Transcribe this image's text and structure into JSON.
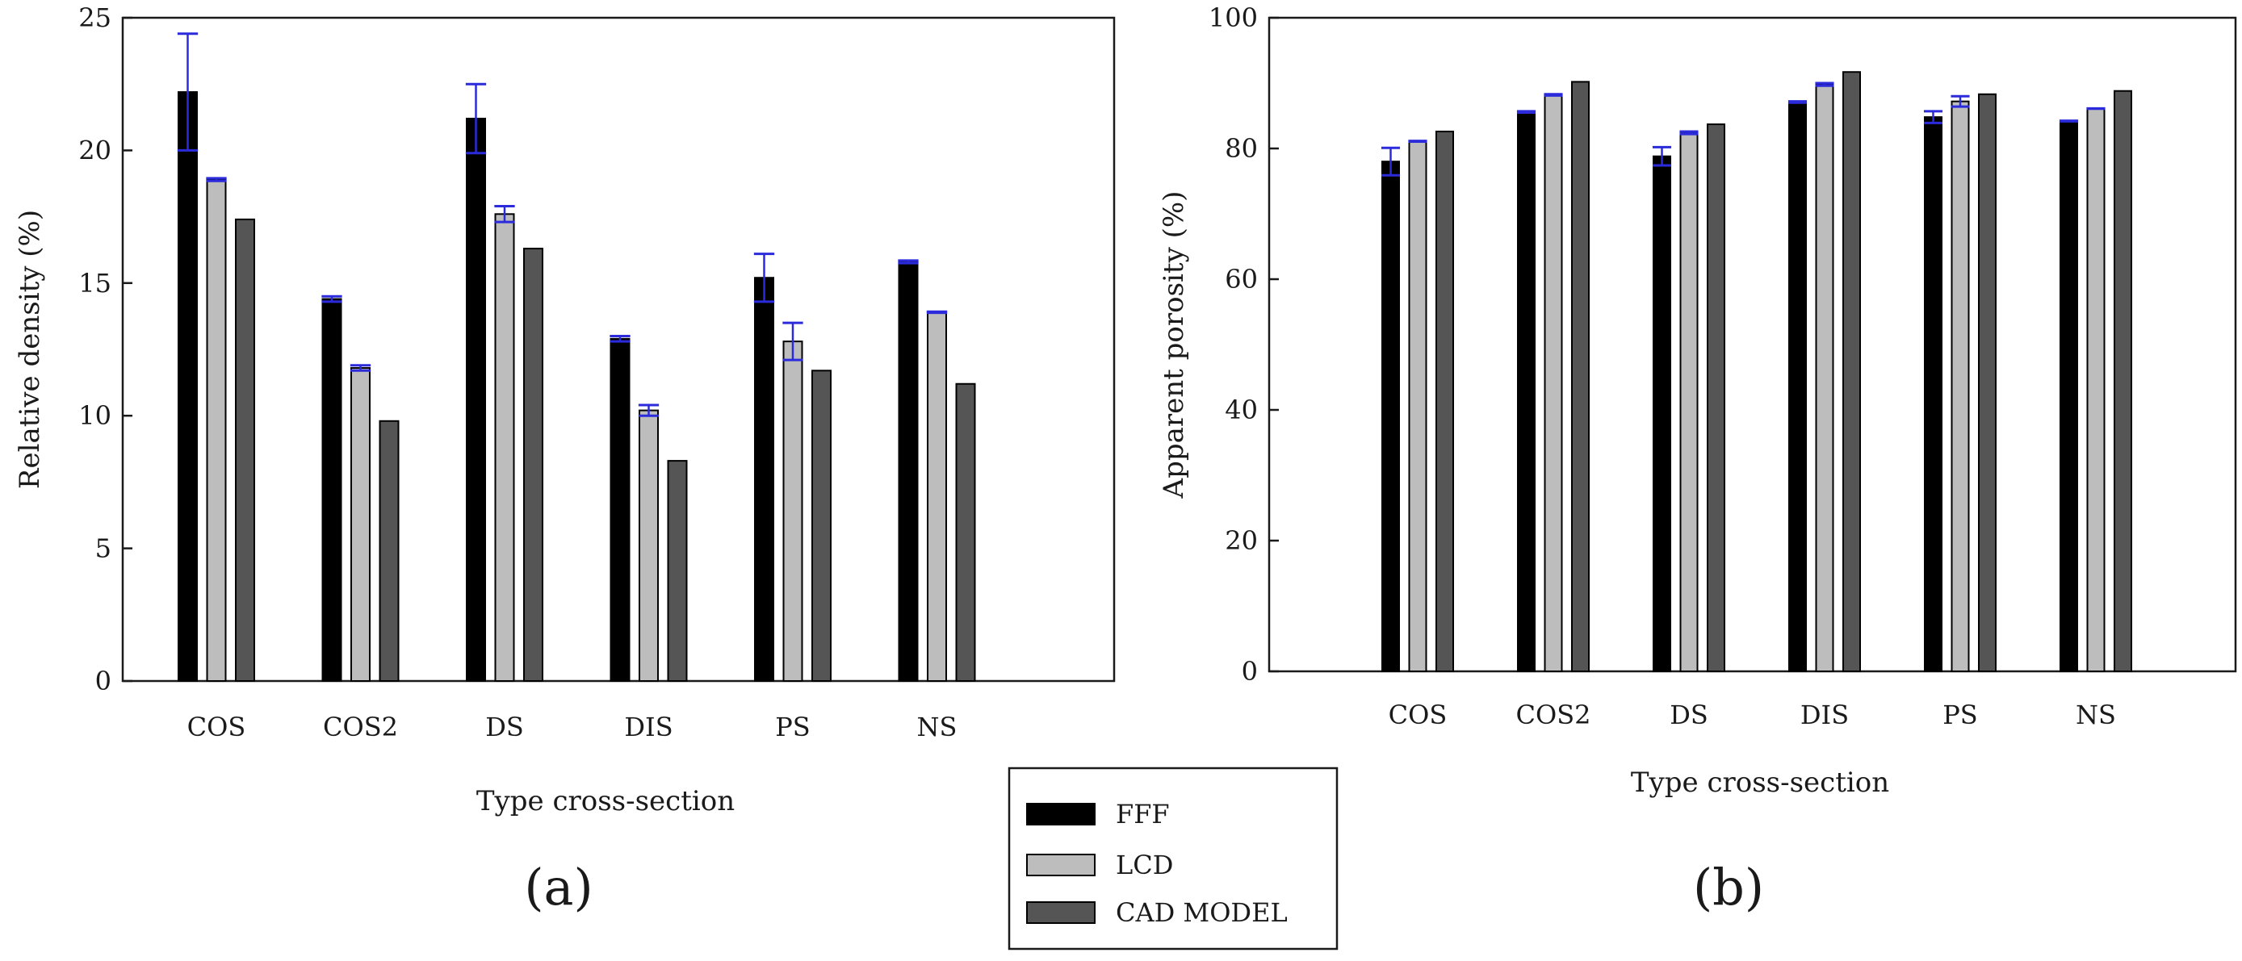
{
  "chart_data": [
    {
      "panel": "(a)",
      "type": "bar",
      "xlabel": "Type cross-section",
      "ylabel": "Relative density (%)",
      "ylim": [
        0,
        25
      ],
      "yticks": [
        0,
        5,
        10,
        15,
        20,
        25
      ],
      "categories": [
        "COS",
        "COS2",
        "DS",
        "DIS",
        "PS",
        "NS"
      ],
      "series": [
        {
          "name": "FFF",
          "color": "#000000",
          "values": [
            22.2,
            14.4,
            21.2,
            12.9,
            15.2,
            15.8
          ],
          "errors": [
            2.2,
            0.1,
            1.3,
            0.1,
            0.9,
            0.05
          ]
        },
        {
          "name": "LCD",
          "color": "#bdbdbd",
          "values": [
            18.9,
            11.8,
            17.6,
            10.2,
            12.8,
            13.9
          ],
          "errors": [
            0.05,
            0.1,
            0.3,
            0.2,
            0.7,
            0.02
          ]
        },
        {
          "name": "CAD MODEL",
          "color": "#555555",
          "values": [
            17.4,
            9.8,
            16.3,
            8.3,
            11.7,
            11.2
          ],
          "errors": null
        }
      ]
    },
    {
      "panel": "(b)",
      "type": "bar",
      "xlabel": "Type cross-section",
      "ylabel": "Apparent porosity (%)",
      "ylim": [
        0,
        100
      ],
      "yticks": [
        0,
        20,
        40,
        60,
        80,
        100
      ],
      "categories": [
        "COS",
        "COS2",
        "DS",
        "DIS",
        "PS",
        "NS"
      ],
      "series": [
        {
          "name": "FFF",
          "color": "#000000",
          "values": [
            78.0,
            85.6,
            78.8,
            87.1,
            84.8,
            84.2
          ],
          "errors": [
            2.1,
            0.1,
            1.4,
            0.1,
            0.9,
            0.05
          ]
        },
        {
          "name": "LCD",
          "color": "#bdbdbd",
          "values": [
            81.1,
            88.2,
            82.4,
            89.8,
            87.2,
            86.1
          ],
          "errors": [
            0.05,
            0.1,
            0.2,
            0.2,
            0.8,
            0.02
          ]
        },
        {
          "name": "CAD MODEL",
          "color": "#555555",
          "values": [
            82.6,
            90.2,
            83.7,
            91.7,
            88.3,
            88.8
          ],
          "errors": null
        }
      ]
    }
  ],
  "legend": {
    "items": [
      {
        "label": "FFF",
        "color": "#000000"
      },
      {
        "label": "LCD",
        "color": "#bdbdbd"
      },
      {
        "label": "CAD MODEL",
        "color": "#555555"
      }
    ]
  },
  "colors": {
    "error_bar": "#2b2bdc",
    "axis": "#1a1a1a"
  }
}
